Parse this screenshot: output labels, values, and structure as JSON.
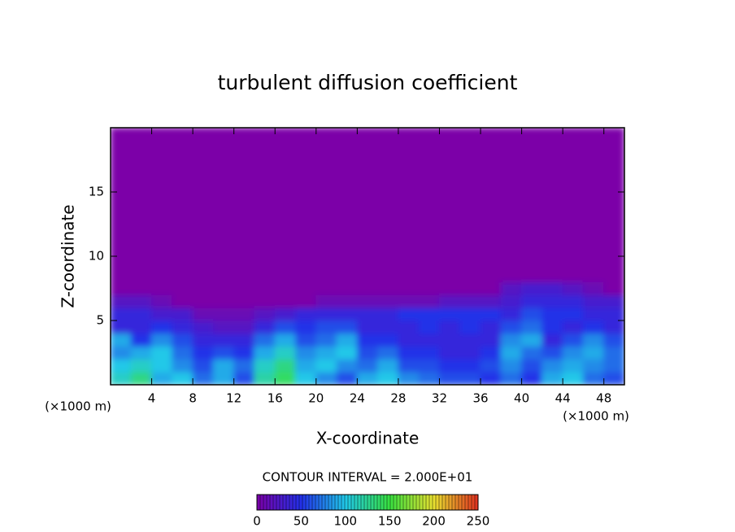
{
  "chart_data": {
    "type": "heatmap",
    "title": "turbulent diffusion coefficient",
    "x_label": "X-coordinate",
    "y_label": "Z-coordinate",
    "x_unit_label": "(×1000 m)",
    "y_unit_label": "(×1000 m)",
    "contour_label": "CONTOUR INTERVAL = 2.000E+01",
    "xlim": [
      0,
      50
    ],
    "ylim": [
      0,
      20
    ],
    "xticks": [
      4,
      8,
      12,
      16,
      20,
      24,
      28,
      32,
      36,
      40,
      44,
      48
    ],
    "yticks": [
      5,
      10,
      15
    ],
    "x_edges": [
      0,
      2,
      4,
      6,
      8,
      10,
      12,
      14,
      16,
      18,
      20,
      22,
      24,
      26,
      28,
      30,
      32,
      34,
      36,
      38,
      40,
      42,
      44,
      46,
      48,
      50
    ],
    "z_edges": [
      0,
      1,
      2,
      3,
      4,
      5,
      6,
      7,
      8,
      20
    ],
    "values": [
      [
        110,
        130,
        90,
        100,
        70,
        90,
        60,
        120,
        140,
        100,
        80,
        60,
        90,
        100,
        80,
        70,
        60,
        60,
        50,
        70,
        50,
        90,
        100,
        70,
        60
      ],
      [
        100,
        110,
        100,
        80,
        60,
        90,
        70,
        110,
        130,
        90,
        100,
        80,
        70,
        90,
        60,
        60,
        50,
        50,
        60,
        80,
        60,
        80,
        90,
        80,
        70
      ],
      [
        80,
        90,
        100,
        70,
        50,
        60,
        50,
        90,
        110,
        80,
        90,
        100,
        60,
        70,
        50,
        50,
        40,
        40,
        50,
        90,
        70,
        60,
        80,
        90,
        70
      ],
      [
        90,
        50,
        80,
        60,
        40,
        40,
        40,
        70,
        90,
        60,
        70,
        90,
        50,
        50,
        40,
        40,
        40,
        40,
        40,
        80,
        90,
        40,
        60,
        80,
        60
      ],
      [
        40,
        40,
        50,
        40,
        30,
        20,
        20,
        40,
        60,
        50,
        60,
        60,
        40,
        40,
        40,
        50,
        40,
        50,
        40,
        60,
        70,
        50,
        40,
        50,
        40
      ],
      [
        40,
        40,
        30,
        30,
        10,
        10,
        10,
        20,
        30,
        40,
        40,
        40,
        40,
        40,
        50,
        50,
        50,
        50,
        50,
        40,
        60,
        50,
        50,
        40,
        40
      ],
      [
        20,
        20,
        10,
        0,
        0,
        0,
        0,
        0,
        0,
        0,
        10,
        10,
        10,
        10,
        10,
        10,
        20,
        20,
        20,
        30,
        40,
        40,
        40,
        30,
        30
      ],
      [
        0,
        0,
        0,
        0,
        0,
        0,
        0,
        0,
        0,
        0,
        0,
        0,
        0,
        0,
        0,
        0,
        0,
        0,
        0,
        20,
        30,
        30,
        20,
        10,
        0
      ],
      [
        0,
        0,
        0,
        0,
        0,
        0,
        0,
        0,
        0,
        0,
        0,
        0,
        0,
        0,
        0,
        0,
        0,
        0,
        0,
        0,
        0,
        0,
        0,
        0,
        0
      ]
    ],
    "colormap": [
      "#7b00a8",
      "#2230e8",
      "#20c8e8",
      "#38e040",
      "#e8e030",
      "#e03020"
    ],
    "cbar_lim": [
      0,
      250
    ],
    "cbar_ticks": [
      0,
      50,
      100,
      150,
      200,
      250
    ]
  }
}
